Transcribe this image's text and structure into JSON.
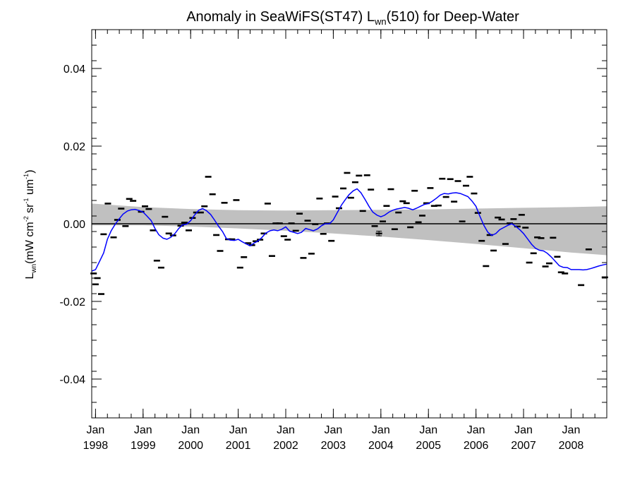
{
  "chart_data": {
    "type": "scatter",
    "title": {
      "prefix": "Anomaly in SeaWiFS(ST47) L",
      "subscript": "wn",
      "suffix": "(510) for Deep-Water"
    },
    "ylabel": {
      "main": "L",
      "main_sub": "wn",
      "units_open": "(mW cm",
      "units_exp1": "-2",
      "units_mid1": " sr",
      "units_exp2": "-1",
      "units_mid2": " um",
      "units_exp3": "-1",
      "units_close": ")"
    },
    "xlim": [
      1997.92,
      2008.75
    ],
    "ylim": [
      -0.05,
      0.05
    ],
    "grid": false,
    "yticks": [
      {
        "value": 0.04,
        "label": "0.04"
      },
      {
        "value": 0.02,
        "label": "0.02"
      },
      {
        "value": 0.0,
        "label": "0.00"
      },
      {
        "value": -0.02,
        "label": "-0.02"
      },
      {
        "value": -0.04,
        "label": "-0.04"
      }
    ],
    "xticks": [
      {
        "value": 1998,
        "month": "Jan",
        "year": "1998"
      },
      {
        "value": 1999,
        "month": "Jan",
        "year": "1999"
      },
      {
        "value": 2000,
        "month": "Jan",
        "year": "2000"
      },
      {
        "value": 2001,
        "month": "Jan",
        "year": "2001"
      },
      {
        "value": 2002,
        "month": "Jan",
        "year": "2002"
      },
      {
        "value": 2003,
        "month": "Jan",
        "year": "2003"
      },
      {
        "value": 2004,
        "month": "Jan",
        "year": "2004"
      },
      {
        "value": 2005,
        "month": "Jan",
        "year": "2005"
      },
      {
        "value": 2006,
        "month": "Jan",
        "year": "2006"
      },
      {
        "value": 2007,
        "month": "Jan",
        "year": "2007"
      },
      {
        "value": 2008,
        "month": "Jan",
        "year": "2008"
      }
    ],
    "colors": {
      "band": "#c0c0c0",
      "smooth_line": "#0000ff",
      "points": "#000000",
      "zero_line": "#000000"
    },
    "band": {
      "upper": [
        [
          1997.92,
          0.0052
        ],
        [
          1999.0,
          0.0043
        ],
        [
          2000.0,
          0.0038
        ],
        [
          2001.0,
          0.0035
        ],
        [
          2002.0,
          0.0034
        ],
        [
          2003.0,
          0.0035
        ],
        [
          2004.0,
          0.0036
        ],
        [
          2005.0,
          0.0037
        ],
        [
          2006.0,
          0.0039
        ],
        [
          2007.0,
          0.0041
        ],
        [
          2008.0,
          0.0043
        ],
        [
          2008.75,
          0.0045
        ]
      ],
      "lower": [
        [
          1997.92,
          -0.0004
        ],
        [
          1999.0,
          -0.0004
        ],
        [
          2000.0,
          -0.0007
        ],
        [
          2001.0,
          -0.0012
        ],
        [
          2002.0,
          -0.0018
        ],
        [
          2003.0,
          -0.0025
        ],
        [
          2004.0,
          -0.0033
        ],
        [
          2005.0,
          -0.0042
        ],
        [
          2006.0,
          -0.0052
        ],
        [
          2007.0,
          -0.0063
        ],
        [
          2008.0,
          -0.0074
        ],
        [
          2008.75,
          -0.0081
        ]
      ]
    },
    "reference_line": {
      "y": 0.0
    },
    "points": [
      {
        "x": 1997.96,
        "y": -0.0128
      },
      {
        "x": 1998.0,
        "y": -0.0156
      },
      {
        "x": 1998.04,
        "y": -0.014
      },
      {
        "x": 1998.12,
        "y": -0.0181
      },
      {
        "x": 1998.17,
        "y": -0.0027
      },
      {
        "x": 1998.26,
        "y": 0.0052
      },
      {
        "x": 1998.38,
        "y": -0.0035
      },
      {
        "x": 1998.46,
        "y": 0.001
      },
      {
        "x": 1998.54,
        "y": 0.0039
      },
      {
        "x": 1998.63,
        "y": -0.0006
      },
      {
        "x": 1998.71,
        "y": 0.0064
      },
      {
        "x": 1998.79,
        "y": 0.0059
      },
      {
        "x": 1998.96,
        "y": 0.0031
      },
      {
        "x": 1999.04,
        "y": 0.0045
      },
      {
        "x": 1999.12,
        "y": 0.0038
      },
      {
        "x": 1999.21,
        "y": -0.0017
      },
      {
        "x": 1999.29,
        "y": -0.0095
      },
      {
        "x": 1999.38,
        "y": -0.0113
      },
      {
        "x": 1999.46,
        "y": 0.0018
      },
      {
        "x": 1999.54,
        "y": -0.0025
      },
      {
        "x": 1999.63,
        "y": -0.003
      },
      {
        "x": 1999.79,
        "y": -0.0005
      },
      {
        "x": 1999.87,
        "y": 0.0003
      },
      {
        "x": 1999.96,
        "y": -0.0017
      },
      {
        "x": 2000.04,
        "y": 0.0015
      },
      {
        "x": 2000.12,
        "y": 0.0029
      },
      {
        "x": 2000.21,
        "y": 0.0029
      },
      {
        "x": 2000.29,
        "y": 0.0045
      },
      {
        "x": 2000.37,
        "y": 0.0121
      },
      {
        "x": 2000.46,
        "y": 0.0076
      },
      {
        "x": 2000.54,
        "y": -0.0029
      },
      {
        "x": 2000.62,
        "y": -0.007
      },
      {
        "x": 2000.71,
        "y": 0.0054
      },
      {
        "x": 2000.79,
        "y": -0.004
      },
      {
        "x": 2000.87,
        "y": -0.004
      },
      {
        "x": 2000.96,
        "y": 0.0061
      },
      {
        "x": 2001.04,
        "y": -0.0113
      },
      {
        "x": 2001.12,
        "y": -0.0086
      },
      {
        "x": 2001.21,
        "y": -0.005
      },
      {
        "x": 2001.29,
        "y": -0.0055
      },
      {
        "x": 2001.37,
        "y": -0.0045
      },
      {
        "x": 2001.46,
        "y": -0.0041
      },
      {
        "x": 2001.54,
        "y": -0.0025
      },
      {
        "x": 2001.62,
        "y": 0.0052
      },
      {
        "x": 2001.71,
        "y": -0.0083
      },
      {
        "x": 2001.79,
        "y": 0.0001
      },
      {
        "x": 2001.87,
        "y": 0.0001
      },
      {
        "x": 2001.96,
        "y": -0.0032
      },
      {
        "x": 2002.04,
        "y": -0.0041
      },
      {
        "x": 2002.12,
        "y": 0.0001
      },
      {
        "x": 2002.21,
        "y": -0.0018
      },
      {
        "x": 2002.29,
        "y": 0.0026
      },
      {
        "x": 2002.37,
        "y": -0.0088
      },
      {
        "x": 2002.46,
        "y": 0.0008
      },
      {
        "x": 2002.54,
        "y": -0.0077
      },
      {
        "x": 2002.62,
        "y": -0.0001
      },
      {
        "x": 2002.71,
        "y": 0.0065
      },
      {
        "x": 2002.79,
        "y": -0.0026
      },
      {
        "x": 2002.87,
        "y": 0.0001
      },
      {
        "x": 2002.96,
        "y": -0.0044
      },
      {
        "x": 2003.04,
        "y": 0.007
      },
      {
        "x": 2003.12,
        "y": 0.004
      },
      {
        "x": 2003.21,
        "y": 0.0091
      },
      {
        "x": 2003.29,
        "y": 0.0131
      },
      {
        "x": 2003.37,
        "y": 0.0067
      },
      {
        "x": 2003.46,
        "y": 0.0107
      },
      {
        "x": 2003.54,
        "y": 0.0124
      },
      {
        "x": 2003.62,
        "y": 0.0033
      },
      {
        "x": 2003.71,
        "y": 0.0125
      },
      {
        "x": 2003.79,
        "y": 0.0088
      },
      {
        "x": 2003.87,
        "y": -0.0006
      },
      {
        "x": 2003.96,
        "y": -0.0025
      },
      {
        "x": 2004.04,
        "y": 0.0006
      },
      {
        "x": 2004.12,
        "y": 0.0046
      },
      {
        "x": 2004.21,
        "y": 0.0089
      },
      {
        "x": 2004.29,
        "y": -0.0014
      },
      {
        "x": 2004.37,
        "y": 0.0029
      },
      {
        "x": 2004.46,
        "y": 0.0058
      },
      {
        "x": 2004.54,
        "y": 0.0053
      },
      {
        "x": 2004.62,
        "y": -0.0009
      },
      {
        "x": 2004.71,
        "y": 0.0085
      },
      {
        "x": 2004.79,
        "y": 0.0004
      },
      {
        "x": 2004.87,
        "y": 0.0021
      },
      {
        "x": 2004.96,
        "y": 0.0053
      },
      {
        "x": 2005.04,
        "y": 0.0092
      },
      {
        "x": 2005.12,
        "y": 0.0046
      },
      {
        "x": 2005.21,
        "y": 0.0047
      },
      {
        "x": 2005.29,
        "y": 0.0116
      },
      {
        "x": 2005.37,
        "y": 0.0069
      },
      {
        "x": 2005.46,
        "y": 0.0115
      },
      {
        "x": 2005.54,
        "y": 0.0057
      },
      {
        "x": 2005.62,
        "y": 0.011
      },
      {
        "x": 2005.71,
        "y": 0.0006
      },
      {
        "x": 2005.79,
        "y": 0.0098
      },
      {
        "x": 2005.87,
        "y": 0.0121
      },
      {
        "x": 2005.96,
        "y": 0.0078
      },
      {
        "x": 2006.04,
        "y": 0.0028
      },
      {
        "x": 2006.12,
        "y": -0.0044
      },
      {
        "x": 2006.21,
        "y": -0.0109
      },
      {
        "x": 2006.29,
        "y": -0.0029
      },
      {
        "x": 2006.37,
        "y": -0.0069
      },
      {
        "x": 2006.46,
        "y": 0.0016
      },
      {
        "x": 2006.54,
        "y": 0.0011
      },
      {
        "x": 2006.62,
        "y": -0.0052
      },
      {
        "x": 2006.71,
        "y": 0.0001
      },
      {
        "x": 2006.79,
        "y": 0.0012
      },
      {
        "x": 2006.87,
        "y": -0.0007
      },
      {
        "x": 2006.96,
        "y": 0.0023
      },
      {
        "x": 2007.04,
        "y": -0.001
      },
      {
        "x": 2007.12,
        "y": -0.01
      },
      {
        "x": 2007.21,
        "y": -0.0076
      },
      {
        "x": 2007.29,
        "y": -0.0035
      },
      {
        "x": 2007.37,
        "y": -0.0037
      },
      {
        "x": 2007.46,
        "y": -0.011
      },
      {
        "x": 2007.54,
        "y": -0.0102
      },
      {
        "x": 2007.62,
        "y": -0.0036
      },
      {
        "x": 2007.71,
        "y": -0.0085
      },
      {
        "x": 2007.79,
        "y": -0.0125
      },
      {
        "x": 2007.87,
        "y": -0.0128
      },
      {
        "x": 2008.21,
        "y": -0.0158
      },
      {
        "x": 2008.37,
        "y": -0.0066
      },
      {
        "x": 2008.71,
        "y": -0.0138
      }
    ],
    "error_points": [
      {
        "x": 2003.96,
        "y": -0.0025,
        "err": 0.0006
      }
    ],
    "smooth_line": [
      [
        1997.92,
        -0.0122
      ],
      [
        1998.0,
        -0.0118
      ],
      [
        1998.08,
        -0.0098
      ],
      [
        1998.17,
        -0.0075
      ],
      [
        1998.25,
        -0.004
      ],
      [
        1998.33,
        -0.0018
      ],
      [
        1998.42,
        0.0
      ],
      [
        1998.5,
        0.0013
      ],
      [
        1998.58,
        0.0025
      ],
      [
        1998.67,
        0.0033
      ],
      [
        1998.75,
        0.0036
      ],
      [
        1998.83,
        0.0037
      ],
      [
        1998.92,
        0.0034
      ],
      [
        1999.0,
        0.003
      ],
      [
        1999.08,
        0.002
      ],
      [
        1999.17,
        0.0008
      ],
      [
        1999.25,
        -0.0012
      ],
      [
        1999.33,
        -0.0028
      ],
      [
        1999.42,
        -0.0037
      ],
      [
        1999.5,
        -0.004
      ],
      [
        1999.58,
        -0.0035
      ],
      [
        1999.67,
        -0.0025
      ],
      [
        1999.75,
        -0.0012
      ],
      [
        1999.83,
        -0.0003
      ],
      [
        1999.92,
        -0.0001
      ],
      [
        2000.0,
        0.0008
      ],
      [
        2000.08,
        0.0022
      ],
      [
        2000.17,
        0.0035
      ],
      [
        2000.25,
        0.0039
      ],
      [
        2000.33,
        0.0034
      ],
      [
        2000.42,
        0.0024
      ],
      [
        2000.5,
        0.001
      ],
      [
        2000.58,
        -0.0005
      ],
      [
        2000.67,
        -0.002
      ],
      [
        2000.75,
        -0.0038
      ],
      [
        2000.83,
        -0.0042
      ],
      [
        2000.92,
        -0.0043
      ],
      [
        2001.0,
        -0.004
      ],
      [
        2001.08,
        -0.0046
      ],
      [
        2001.17,
        -0.0052
      ],
      [
        2001.25,
        -0.0057
      ],
      [
        2001.33,
        -0.005
      ],
      [
        2001.42,
        -0.0044
      ],
      [
        2001.5,
        -0.0035
      ],
      [
        2001.58,
        -0.0024
      ],
      [
        2001.67,
        -0.0018
      ],
      [
        2001.75,
        -0.0016
      ],
      [
        2001.83,
        -0.0018
      ],
      [
        2001.92,
        -0.0014
      ],
      [
        2002.0,
        -0.0008
      ],
      [
        2002.08,
        -0.0019
      ],
      [
        2002.17,
        -0.0022
      ],
      [
        2002.25,
        -0.0025
      ],
      [
        2002.33,
        -0.0022
      ],
      [
        2002.42,
        -0.0012
      ],
      [
        2002.5,
        -0.0015
      ],
      [
        2002.58,
        -0.0018
      ],
      [
        2002.67,
        -0.0013
      ],
      [
        2002.75,
        -0.0005
      ],
      [
        2002.83,
        0.0
      ],
      [
        2002.92,
        0.0
      ],
      [
        2003.0,
        0.001
      ],
      [
        2003.08,
        0.0028
      ],
      [
        2003.17,
        0.0048
      ],
      [
        2003.25,
        0.0062
      ],
      [
        2003.33,
        0.0075
      ],
      [
        2003.42,
        0.0085
      ],
      [
        2003.5,
        0.009
      ],
      [
        2003.58,
        0.008
      ],
      [
        2003.67,
        0.0062
      ],
      [
        2003.75,
        0.0045
      ],
      [
        2003.83,
        0.003
      ],
      [
        2003.92,
        0.0022
      ],
      [
        2004.0,
        0.0018
      ],
      [
        2004.08,
        0.0022
      ],
      [
        2004.17,
        0.003
      ],
      [
        2004.25,
        0.0035
      ],
      [
        2004.33,
        0.0038
      ],
      [
        2004.42,
        0.004
      ],
      [
        2004.5,
        0.0042
      ],
      [
        2004.58,
        0.004
      ],
      [
        2004.67,
        0.0036
      ],
      [
        2004.75,
        0.004
      ],
      [
        2004.83,
        0.0045
      ],
      [
        2004.92,
        0.005
      ],
      [
        2005.0,
        0.0052
      ],
      [
        2005.08,
        0.0058
      ],
      [
        2005.17,
        0.0066
      ],
      [
        2005.25,
        0.0074
      ],
      [
        2005.33,
        0.0078
      ],
      [
        2005.42,
        0.0077
      ],
      [
        2005.5,
        0.0079
      ],
      [
        2005.58,
        0.008
      ],
      [
        2005.67,
        0.0078
      ],
      [
        2005.75,
        0.0074
      ],
      [
        2005.83,
        0.007
      ],
      [
        2005.92,
        0.0058
      ],
      [
        2006.0,
        0.0045
      ],
      [
        2006.08,
        0.002
      ],
      [
        2006.17,
        -0.0005
      ],
      [
        2006.25,
        -0.0022
      ],
      [
        2006.33,
        -0.003
      ],
      [
        2006.42,
        -0.0025
      ],
      [
        2006.5,
        -0.0015
      ],
      [
        2006.58,
        -0.001
      ],
      [
        2006.67,
        -0.0004
      ],
      [
        2006.75,
        0.0
      ],
      [
        2006.83,
        -0.0006
      ],
      [
        2006.92,
        -0.0015
      ],
      [
        2007.0,
        -0.0025
      ],
      [
        2007.08,
        -0.0038
      ],
      [
        2007.17,
        -0.0053
      ],
      [
        2007.25,
        -0.0063
      ],
      [
        2007.33,
        -0.0068
      ],
      [
        2007.42,
        -0.007
      ],
      [
        2007.5,
        -0.0076
      ],
      [
        2007.58,
        -0.0085
      ],
      [
        2007.67,
        -0.0097
      ],
      [
        2007.75,
        -0.0108
      ],
      [
        2007.83,
        -0.0112
      ],
      [
        2007.92,
        -0.0113
      ],
      [
        2008.0,
        -0.0118
      ],
      [
        2008.08,
        -0.0118
      ],
      [
        2008.17,
        -0.0118
      ],
      [
        2008.25,
        -0.0119
      ],
      [
        2008.33,
        -0.0118
      ],
      [
        2008.42,
        -0.0115
      ],
      [
        2008.5,
        -0.0112
      ],
      [
        2008.58,
        -0.0109
      ],
      [
        2008.67,
        -0.0106
      ],
      [
        2008.75,
        -0.0104
      ]
    ]
  }
}
